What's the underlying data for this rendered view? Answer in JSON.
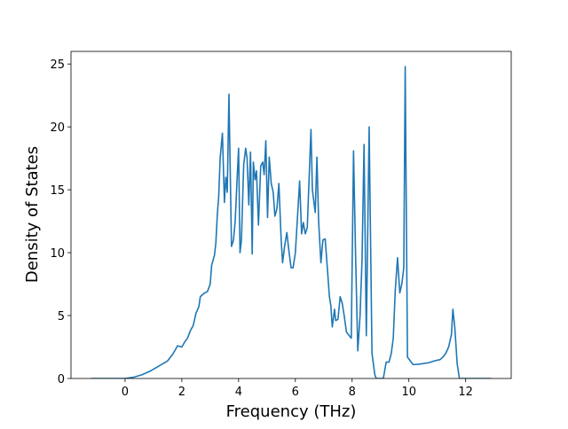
{
  "chart_data": {
    "type": "line",
    "xlabel": "Frequency (THz)",
    "ylabel": "Density of States",
    "color": "#1f77b4",
    "x": [
      -1.2,
      0,
      0.3,
      0.6,
      0.9,
      1.2,
      1.5,
      1.7,
      1.85,
      2.0,
      2.1,
      2.2,
      2.3,
      2.4,
      2.5,
      2.6,
      2.65,
      2.8,
      2.9,
      3.0,
      3.05,
      3.15,
      3.2,
      3.25,
      3.3,
      3.35,
      3.43,
      3.5,
      3.55,
      3.6,
      3.66,
      3.75,
      3.82,
      3.88,
      3.95,
      4.0,
      4.05,
      4.1,
      4.18,
      4.25,
      4.3,
      4.36,
      4.42,
      4.48,
      4.52,
      4.58,
      4.63,
      4.7,
      4.78,
      4.85,
      4.9,
      4.96,
      5.02,
      5.08,
      5.15,
      5.22,
      5.28,
      5.35,
      5.42,
      5.5,
      5.55,
      5.62,
      5.7,
      5.78,
      5.85,
      5.92,
      6.0,
      6.08,
      6.15,
      6.22,
      6.28,
      6.35,
      6.42,
      6.55,
      6.6,
      6.7,
      6.76,
      6.82,
      6.9,
      6.97,
      7.05,
      7.12,
      7.2,
      7.25,
      7.3,
      7.38,
      7.42,
      7.5,
      7.58,
      7.65,
      7.72,
      7.8,
      7.9,
      7.97,
      8.05,
      8.12,
      8.2,
      8.28,
      8.35,
      8.42,
      8.5,
      8.6,
      8.7,
      8.8,
      8.85,
      9.1,
      9.2,
      9.3,
      9.38,
      9.45,
      9.52,
      9.6,
      9.68,
      9.75,
      9.82,
      9.87,
      9.95,
      10.05,
      10.15,
      10.4,
      10.7,
      10.9,
      11.1,
      11.2,
      11.3,
      11.4,
      11.5,
      11.55,
      11.62,
      11.7,
      11.78,
      12.9
    ],
    "values": [
      0,
      0,
      0.1,
      0.3,
      0.6,
      1.0,
      1.4,
      2.0,
      2.6,
      2.5,
      2.9,
      3.2,
      3.8,
      4.2,
      5.2,
      5.7,
      6.5,
      6.8,
      6.9,
      7.5,
      9.0,
      9.8,
      10.8,
      13.0,
      14.5,
      17.5,
      19.5,
      14.0,
      16.0,
      14.8,
      22.6,
      10.5,
      11.0,
      12.5,
      16.0,
      18.3,
      10.0,
      11.0,
      17.0,
      18.3,
      17.5,
      13.8,
      18.0,
      9.9,
      17.2,
      15.8,
      16.5,
      12.2,
      16.9,
      17.2,
      16.2,
      18.9,
      12.8,
      17.6,
      15.5,
      14.8,
      12.9,
      13.5,
      15.5,
      11.0,
      9.2,
      10.5,
      11.6,
      10.0,
      8.8,
      8.8,
      10.0,
      13.0,
      15.7,
      11.5,
      12.4,
      11.5,
      12.0,
      19.8,
      15.0,
      13.2,
      17.6,
      12.5,
      9.2,
      11.0,
      11.1,
      9.0,
      6.5,
      5.8,
      4.1,
      5.5,
      4.6,
      4.7,
      6.5,
      6.0,
      5.0,
      3.7,
      3.4,
      3.2,
      18.1,
      10.0,
      2.2,
      5.0,
      9.5,
      18.6,
      3.4,
      20.0,
      2.0,
      0.3,
      0,
      0,
      1.3,
      1.3,
      2.0,
      3.2,
      7.0,
      9.6,
      6.8,
      7.5,
      8.8,
      24.8,
      1.7,
      1.4,
      1.1,
      1.15,
      1.25,
      1.4,
      1.5,
      1.7,
      2.0,
      2.5,
      3.5,
      5.5,
      4.0,
      1.2,
      0,
      0
    ],
    "xlim": [
      -1.905,
      13.605
    ],
    "ylim": [
      0,
      26.0
    ],
    "xticks": [
      0,
      2,
      4,
      6,
      8,
      10,
      12
    ],
    "yticks": [
      0,
      5,
      10,
      15,
      20,
      25
    ]
  }
}
